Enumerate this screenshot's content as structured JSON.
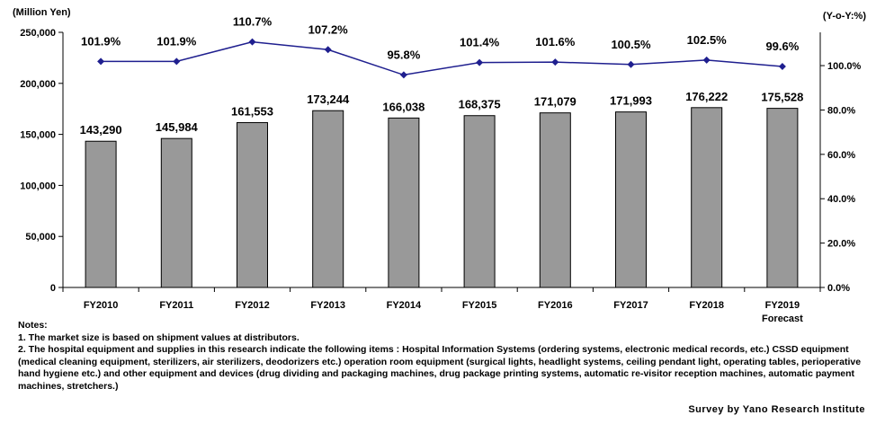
{
  "chart_data": {
    "type": "bar",
    "categories": [
      "FY2010",
      "FY2011",
      "FY2012",
      "FY2013",
      "FY2014",
      "FY2015",
      "FY2016",
      "FY2017",
      "FY2018",
      "FY2019"
    ],
    "category_sublabels": [
      "",
      "",
      "",
      "",
      "",
      "",
      "",
      "",
      "",
      "Forecast"
    ],
    "values": [
      143290,
      145984,
      161553,
      173244,
      166038,
      168375,
      171079,
      171993,
      176222,
      175528
    ],
    "value_labels": [
      "143,290",
      "145,984",
      "161,553",
      "173,244",
      "166,038",
      "168,375",
      "171,079",
      "171,993",
      "176,222",
      "175,528"
    ],
    "bar_color": "#999999",
    "yoy": [
      101.9,
      101.9,
      110.7,
      107.2,
      95.8,
      101.4,
      101.6,
      100.5,
      102.5,
      99.6
    ],
    "yoy_labels": [
      "101.9%",
      "101.9%",
      "110.7%",
      "107.2%",
      "95.8%",
      "101.4%",
      "101.6%",
      "100.5%",
      "102.5%",
      "99.6%"
    ],
    "line_color": "#1f1f8f",
    "ylabel": "(Million Yen)",
    "y2label": "(Y-o-Y:%)",
    "ylim": [
      0,
      250000
    ],
    "yticks": [
      0,
      50000,
      100000,
      150000,
      200000,
      250000
    ],
    "ytick_labels": [
      "0",
      "50,000",
      "100,000",
      "150,000",
      "200,000",
      "250,000"
    ],
    "y2lim": [
      0,
      115
    ],
    "y2ticks": [
      0,
      20,
      40,
      60,
      80,
      100
    ],
    "y2tick_labels": [
      "0.0%",
      "20.0%",
      "40.0%",
      "60.0%",
      "80.0%",
      "100.0%"
    ],
    "grid": false
  },
  "notes": {
    "heading": "Notes:",
    "line1": "1. The market size is based on shipment values at distributors.",
    "line2": "2. The hospital equipment and supplies in this research indicate the following items : Hospital Information Systems (ordering systems, electronic medical records, etc.) CSSD equipment (medical cleaning equipment, sterilizers, air sterilizers, deodorizers etc.) operation room equipment (surgical lights, headlight systems, ceiling pendant light, operating tables, perioperative hand hygiene etc.) and other equipment and devices (drug dividing and packaging machines, drug package printing systems, automatic re-visitor reception machines, automatic payment machines, stretchers.)"
  },
  "source": "Survey by Yano Research Institute"
}
